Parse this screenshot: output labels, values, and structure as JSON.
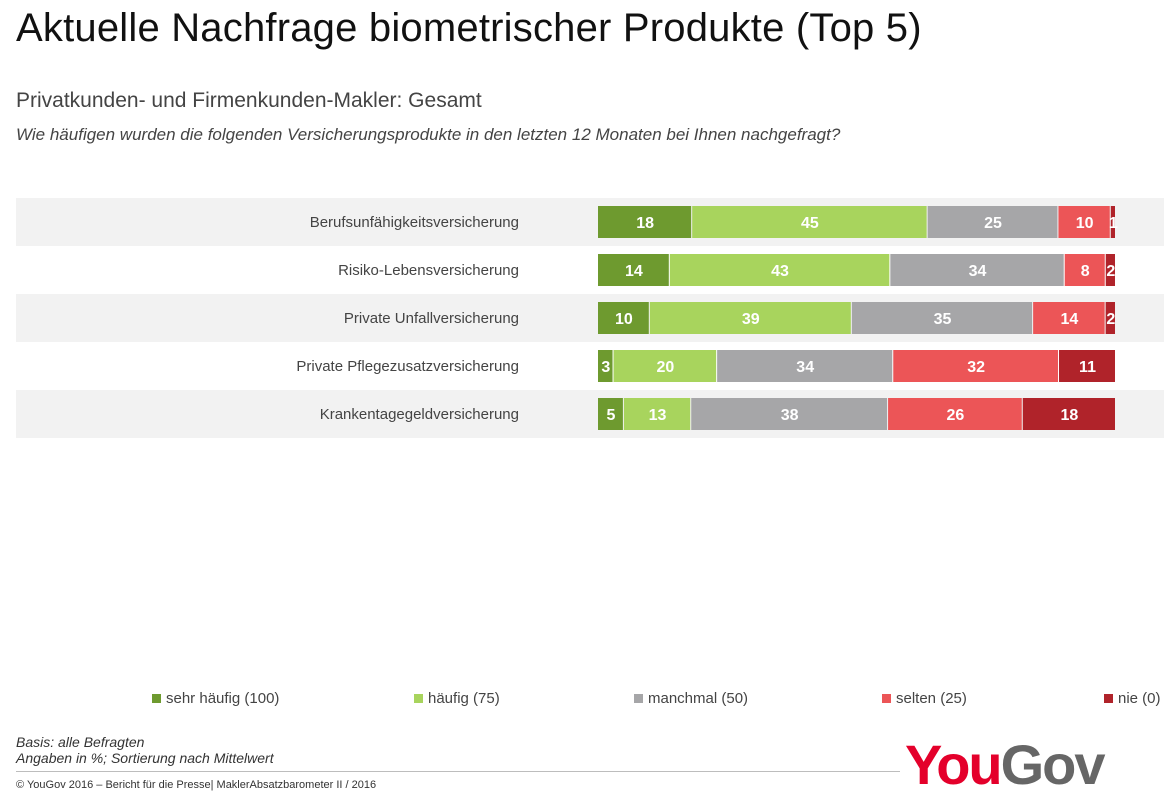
{
  "header": {
    "title": "Aktuelle Nachfrage biometrischer Produkte (Top 5)",
    "subtitle": "Privatkunden- und Firmenkunden-Makler: Gesamt",
    "question": "Wie häufigen wurden die folgenden Versicherungsprodukte in den letzten 12 Monaten bei Ihnen nachgefragt?"
  },
  "chart_data": {
    "type": "bar",
    "orientation": "horizontal",
    "stacked": true,
    "categories": [
      "Berufsunfähigkeitsversicherung",
      "Risiko-Lebensversicherung",
      "Private Unfallversicherung",
      "Private Pflegezusatzversicherung",
      "Krankentagegeldversicherung"
    ],
    "series": [
      {
        "name": "sehr häufig (100)",
        "color": "#6e9a2f",
        "values": [
          18,
          14,
          10,
          3,
          5
        ]
      },
      {
        "name": "häufig (75)",
        "color": "#a8d45d",
        "values": [
          45,
          43,
          39,
          20,
          13
        ]
      },
      {
        "name": "manchmal (50)",
        "color": "#a6a6a8",
        "values": [
          25,
          34,
          35,
          34,
          38
        ]
      },
      {
        "name": "selten (25)",
        "color": "#ec5557",
        "values": [
          10,
          8,
          14,
          32,
          26
        ]
      },
      {
        "name": "nie (0)",
        "color": "#b0232a",
        "values": [
          1,
          2,
          2,
          11,
          18
        ]
      }
    ],
    "legend_position": "bottom",
    "row_band_color": "#f2f2f2"
  },
  "notes": {
    "basis": "Basis: alle Befragten",
    "units": "Angaben in %; Sortierung nach Mittelwert"
  },
  "footer": {
    "copyright": "© YouGov 2016 – Bericht für die Presse| MaklerAbsatzbarometer II / 2016"
  },
  "logo": {
    "part1": "You",
    "part2": "Gov"
  }
}
